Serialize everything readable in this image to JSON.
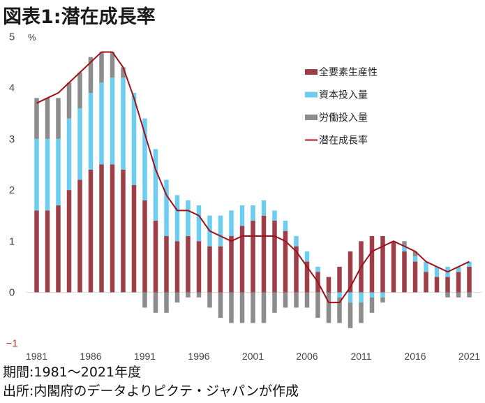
{
  "title": "図表1:潜在成長率",
  "notes": {
    "period": "期間:1981〜2021年度",
    "source": "出所:内閣府のデータよりピクテ・ジャパンが作成"
  },
  "chart_data": {
    "type": "bar",
    "stacked": true,
    "title": "図表1:潜在成長率",
    "ylabel": "%",
    "ylim": [
      -1,
      5
    ],
    "yticks": [
      5,
      4,
      3,
      2,
      1,
      0,
      -1
    ],
    "ytick_labels": [
      "5",
      "4",
      "3",
      "2",
      "1",
      "0",
      "-1"
    ],
    "xtick_labels": [
      "1981",
      "1986",
      "1991",
      "1996",
      "2001",
      "2006",
      "2011",
      "2016",
      "2021"
    ],
    "legend_position": "top-right",
    "grid": false,
    "x": [
      1981,
      1982,
      1983,
      1984,
      1985,
      1986,
      1987,
      1988,
      1989,
      1990,
      1991,
      1992,
      1993,
      1994,
      1995,
      1996,
      1997,
      1998,
      1999,
      2000,
      2001,
      2002,
      2003,
      2004,
      2005,
      2006,
      2007,
      2008,
      2009,
      2010,
      2011,
      2012,
      2013,
      2014,
      2015,
      2016,
      2017,
      2018,
      2019,
      2020,
      2021
    ],
    "series": [
      {
        "name": "全要素生産性",
        "kind": "bar",
        "color": "#9e3f48",
        "values": [
          1.6,
          1.6,
          1.7,
          2.0,
          2.2,
          2.4,
          2.5,
          2.5,
          2.4,
          2.1,
          1.8,
          1.4,
          1.1,
          1.0,
          1.1,
          1.0,
          0.9,
          0.9,
          1.1,
          1.3,
          1.4,
          1.5,
          1.4,
          1.2,
          0.9,
          0.6,
          0.4,
          0.3,
          0.5,
          0.8,
          1.0,
          1.1,
          1.1,
          1.0,
          0.8,
          0.6,
          0.4,
          0.3,
          0.3,
          0.4,
          0.5
        ]
      },
      {
        "name": "資本投入量",
        "kind": "bar",
        "color": "#6ccdf0",
        "values": [
          1.4,
          1.4,
          1.3,
          1.4,
          1.4,
          1.5,
          1.6,
          1.7,
          1.8,
          1.8,
          1.6,
          1.4,
          1.1,
          0.9,
          0.7,
          0.7,
          0.6,
          0.6,
          0.5,
          0.4,
          0.3,
          0.3,
          0.2,
          0.2,
          0.2,
          0.2,
          0.1,
          0.0,
          -0.1,
          -0.2,
          -0.2,
          -0.1,
          -0.1,
          0.0,
          0.1,
          0.1,
          0.2,
          0.2,
          0.2,
          0.1,
          0.1
        ]
      },
      {
        "name": "労働投入量",
        "kind": "bar",
        "color": "#8c8c8c",
        "values": [
          0.8,
          0.8,
          0.8,
          0.7,
          0.7,
          0.7,
          0.6,
          0.5,
          0.2,
          0.0,
          -0.3,
          -0.4,
          -0.4,
          -0.2,
          -0.1,
          -0.1,
          -0.3,
          -0.5,
          -0.6,
          -0.6,
          -0.6,
          -0.6,
          -0.4,
          -0.3,
          -0.3,
          -0.3,
          -0.5,
          -0.6,
          -0.5,
          -0.5,
          -0.4,
          -0.3,
          -0.1,
          0.0,
          0.1,
          0.1,
          0.0,
          0.0,
          -0.1,
          -0.1,
          -0.1
        ]
      },
      {
        "name": "潜在成長率",
        "kind": "line",
        "color": "#a0101a",
        "values": [
          3.7,
          3.8,
          3.9,
          4.1,
          4.3,
          4.5,
          4.7,
          4.7,
          4.4,
          3.8,
          3.1,
          2.4,
          1.9,
          1.6,
          1.6,
          1.5,
          1.2,
          1.1,
          1.0,
          1.1,
          1.1,
          1.1,
          1.1,
          1.0,
          0.8,
          0.5,
          0.2,
          -0.2,
          -0.2,
          0.1,
          0.5,
          0.8,
          0.9,
          1.0,
          0.9,
          0.8,
          0.6,
          0.5,
          0.4,
          0.5,
          0.6
        ]
      }
    ]
  }
}
